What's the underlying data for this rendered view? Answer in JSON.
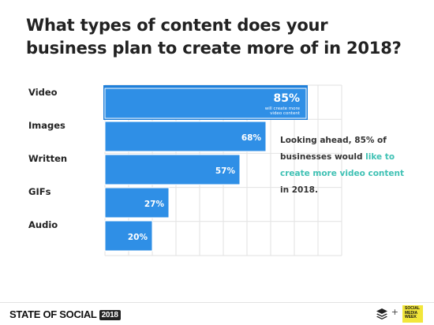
{
  "title_lines": [
    "What types of content does your",
    "business plan to create more of in 2018?"
  ],
  "chart_data": {
    "type": "bar",
    "orientation": "horizontal",
    "categories": [
      "Video",
      "Images",
      "Written",
      "GIFs",
      "Audio"
    ],
    "values": [
      85,
      68,
      57,
      27,
      20
    ],
    "value_labels": [
      "85%",
      "68%",
      "57%",
      "27%",
      "20%"
    ],
    "annotation": "will create more video content",
    "xlim": [
      0,
      100
    ],
    "grid": true,
    "bar_color": "#2f8fe6",
    "highlight_color": "#1f7fd9"
  },
  "caption": {
    "part1": "Looking ahead, 85% of businesses would ",
    "highlight": "like to create more video content",
    "part2": " in 2018.",
    "highlight_color": "#3fc1b4"
  },
  "footer": {
    "brand": "STATE OF SOCIAL",
    "year": "2018",
    "plus": "+",
    "partner": "SOCIAL MEDIA WEEK"
  }
}
